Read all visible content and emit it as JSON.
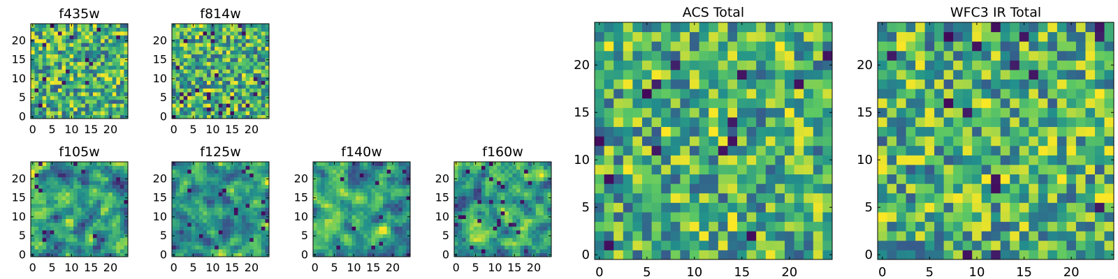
{
  "figure": {
    "colormap": [
      "#440154",
      "#3b528b",
      "#21918c",
      "#5ec962",
      "#fde725"
    ]
  },
  "chart_data": [
    {
      "type": "heatmap",
      "title": "f435w",
      "grid_size": 25,
      "xlim": [
        0,
        24
      ],
      "ylim": [
        0,
        24
      ],
      "xticks": [
        0,
        5,
        10,
        15,
        20
      ],
      "yticks": [
        0,
        5,
        10,
        15,
        20
      ],
      "xticklabels": [
        "0",
        "5",
        "10",
        "15",
        "20"
      ],
      "yticklabels": [
        "0",
        "5",
        "10",
        "15",
        "20"
      ],
      "pattern": "fine-noise",
      "seed": 11,
      "dark_fraction": 0.035
    },
    {
      "type": "heatmap",
      "title": "f814w",
      "grid_size": 25,
      "xlim": [
        0,
        24
      ],
      "ylim": [
        0,
        24
      ],
      "xticks": [
        0,
        5,
        10,
        15,
        20
      ],
      "yticks": [
        0,
        5,
        10,
        15,
        20
      ],
      "xticklabels": [
        "0",
        "5",
        "10",
        "15",
        "20"
      ],
      "yticklabels": [
        "0",
        "5",
        "10",
        "15",
        "20"
      ],
      "pattern": "fine-noise",
      "seed": 23,
      "dark_fraction": 0.035
    },
    {
      "type": "heatmap",
      "title": "f105w",
      "grid_size": 25,
      "xlim": [
        0,
        24
      ],
      "ylim": [
        0,
        24
      ],
      "xticks": [
        0,
        5,
        10,
        15,
        20
      ],
      "yticks": [
        0,
        5,
        10,
        15,
        20
      ],
      "xticklabels": [
        "0",
        "5",
        "10",
        "15",
        "20"
      ],
      "yticklabels": [
        "0",
        "5",
        "10",
        "15",
        "20"
      ],
      "pattern": "smooth",
      "seed": 37,
      "dark_fraction": 0.025
    },
    {
      "type": "heatmap",
      "title": "f125w",
      "grid_size": 25,
      "xlim": [
        0,
        24
      ],
      "ylim": [
        0,
        24
      ],
      "xticks": [
        0,
        5,
        10,
        15,
        20
      ],
      "yticks": [
        0,
        5,
        10,
        15,
        20
      ],
      "xticklabels": [
        "0",
        "5",
        "10",
        "15",
        "20"
      ],
      "yticklabels": [
        "0",
        "5",
        "10",
        "15",
        "20"
      ],
      "pattern": "smooth",
      "seed": 41,
      "dark_fraction": 0.025
    },
    {
      "type": "heatmap",
      "title": "f140w",
      "grid_size": 25,
      "xlim": [
        0,
        24
      ],
      "ylim": [
        0,
        24
      ],
      "xticks": [
        0,
        5,
        10,
        15,
        20
      ],
      "yticks": [
        0,
        5,
        10,
        15,
        20
      ],
      "xticklabels": [
        "0",
        "5",
        "10",
        "15",
        "20"
      ],
      "yticklabels": [
        "0",
        "5",
        "10",
        "15",
        "20"
      ],
      "pattern": "smooth",
      "seed": 53,
      "dark_fraction": 0.02
    },
    {
      "type": "heatmap",
      "title": "f160w",
      "grid_size": 25,
      "xlim": [
        0,
        24
      ],
      "ylim": [
        0,
        24
      ],
      "xticks": [
        0,
        5,
        10,
        15,
        20
      ],
      "yticks": [
        0,
        5,
        10,
        15,
        20
      ],
      "xticklabels": [
        "0",
        "5",
        "10",
        "15",
        "20"
      ],
      "yticklabels": [
        "0",
        "5",
        "10",
        "15",
        "20"
      ],
      "pattern": "smooth",
      "seed": 67,
      "dark_fraction": 0.03
    },
    {
      "type": "heatmap",
      "title": "ACS Total",
      "grid_size": 25,
      "xlim": [
        0,
        24
      ],
      "ylim": [
        0,
        24
      ],
      "xticks": [
        0,
        5,
        10,
        15,
        20
      ],
      "yticks": [
        0,
        5,
        10,
        15,
        20
      ],
      "xticklabels": [
        "0",
        "5",
        "10",
        "15",
        "20"
      ],
      "yticklabels": [
        "0",
        "5",
        "10",
        "15",
        "20"
      ],
      "pattern": "coarse-noise",
      "seed": 79,
      "dark_fraction": 0.03
    },
    {
      "type": "heatmap",
      "title": "WFC3 IR Total",
      "grid_size": 25,
      "xlim": [
        0,
        24
      ],
      "ylim": [
        0,
        24
      ],
      "xticks": [
        0,
        5,
        10,
        15,
        20
      ],
      "yticks": [
        0,
        5,
        10,
        15,
        20
      ],
      "xticklabels": [
        "0",
        "5",
        "10",
        "15",
        "20"
      ],
      "yticklabels": [
        "0",
        "5",
        "10",
        "15",
        "20"
      ],
      "pattern": "coarse-noise",
      "seed": 97,
      "dark_fraction": 0.03
    }
  ]
}
